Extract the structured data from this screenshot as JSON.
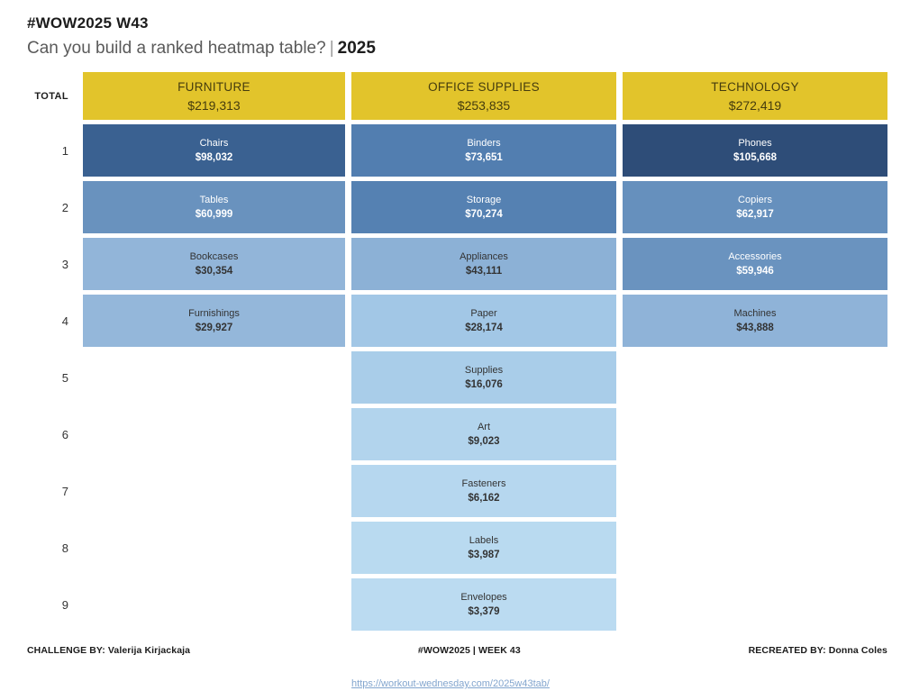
{
  "title": "#WOW2025 W43",
  "subtitle": {
    "question": "Can you build a ranked heatmap table?",
    "separator": "|",
    "year": "2025"
  },
  "colors": {
    "header_bg": "#E2C42B",
    "header_fg": "#453C0E",
    "dark_text": "#333333",
    "light_text": "#FFFFFF",
    "link": "#82A5CE"
  },
  "table": {
    "total_label": "TOTAL",
    "ranks": [
      "1",
      "2",
      "3",
      "4",
      "5",
      "6",
      "7",
      "8",
      "9"
    ],
    "columns": [
      {
        "header": {
          "name": "FURNITURE",
          "total": "$219,313"
        },
        "cells": {
          "1": {
            "label": "Chairs",
            "value": "$98,032",
            "bg": "#3A6191",
            "fg": "#FFFFFF"
          },
          "2": {
            "label": "Tables",
            "value": "$60,999",
            "bg": "#6992BE",
            "fg": "#FFFFFF"
          },
          "3": {
            "label": "Bookcases",
            "value": "$30,354",
            "bg": "#92B5D9",
            "fg": "#333333"
          },
          "4": {
            "label": "Furnishings",
            "value": "$29,927",
            "bg": "#94B7DA",
            "fg": "#333333"
          }
        }
      },
      {
        "header": {
          "name": "OFFICE SUPPLIES",
          "total": "$253,835"
        },
        "cells": {
          "1": {
            "label": "Binders",
            "value": "$73,651",
            "bg": "#527EB0",
            "fg": "#FFFFFF"
          },
          "2": {
            "label": "Storage",
            "value": "$70,274",
            "bg": "#5581B2",
            "fg": "#FFFFFF"
          },
          "3": {
            "label": "Appliances",
            "value": "$43,111",
            "bg": "#8CB1D6",
            "fg": "#333333"
          },
          "4": {
            "label": "Paper",
            "value": "$28,174",
            "bg": "#A2C7E6",
            "fg": "#333333"
          },
          "5": {
            "label": "Supplies",
            "value": "$16,076",
            "bg": "#A9CDE9",
            "fg": "#333333"
          },
          "6": {
            "label": "Art",
            "value": "$9,023",
            "bg": "#B2D4ED",
            "fg": "#333333"
          },
          "7": {
            "label": "Fasteners",
            "value": "$6,162",
            "bg": "#B6D7EF",
            "fg": "#333333"
          },
          "8": {
            "label": "Labels",
            "value": "$3,987",
            "bg": "#B9DAF0",
            "fg": "#333333"
          },
          "9": {
            "label": "Envelopes",
            "value": "$3,379",
            "bg": "#BBDBF1",
            "fg": "#333333"
          }
        }
      },
      {
        "header": {
          "name": "TECHNOLOGY",
          "total": "$272,419"
        },
        "cells": {
          "1": {
            "label": "Phones",
            "value": "$105,668",
            "bg": "#2E4D78",
            "fg": "#FFFFFF"
          },
          "2": {
            "label": "Copiers",
            "value": "$62,917",
            "bg": "#6690BD",
            "fg": "#FFFFFF"
          },
          "3": {
            "label": "Accessories",
            "value": "$59,946",
            "bg": "#6A93BF",
            "fg": "#FFFFFF"
          },
          "4": {
            "label": "Machines",
            "value": "$43,888",
            "bg": "#8FB3D8",
            "fg": "#333333"
          }
        }
      }
    ]
  },
  "footer": {
    "challenge_by": "CHALLENGE BY: Valerija Kirjackaja",
    "center": "#WOW2025  |  WEEK 43",
    "recreated_by": "RECREATED BY: Donna Coles",
    "link": "https://workout-wednesday.com/2025w43tab/"
  },
  "chart_data": {
    "type": "heatmap",
    "title": "#WOW2025 W43 — Can you build a ranked heatmap table? | 2025",
    "columns": [
      "FURNITURE",
      "OFFICE SUPPLIES",
      "TECHNOLOGY"
    ],
    "column_totals": [
      219313,
      253835,
      272419
    ],
    "rank_rows": [
      1,
      2,
      3,
      4,
      5,
      6,
      7,
      8,
      9
    ],
    "cells": [
      {
        "column": "FURNITURE",
        "rank": 1,
        "label": "Chairs",
        "value": 98032
      },
      {
        "column": "FURNITURE",
        "rank": 2,
        "label": "Tables",
        "value": 60999
      },
      {
        "column": "FURNITURE",
        "rank": 3,
        "label": "Bookcases",
        "value": 30354
      },
      {
        "column": "FURNITURE",
        "rank": 4,
        "label": "Furnishings",
        "value": 29927
      },
      {
        "column": "OFFICE SUPPLIES",
        "rank": 1,
        "label": "Binders",
        "value": 73651
      },
      {
        "column": "OFFICE SUPPLIES",
        "rank": 2,
        "label": "Storage",
        "value": 70274
      },
      {
        "column": "OFFICE SUPPLIES",
        "rank": 3,
        "label": "Appliances",
        "value": 43111
      },
      {
        "column": "OFFICE SUPPLIES",
        "rank": 4,
        "label": "Paper",
        "value": 28174
      },
      {
        "column": "OFFICE SUPPLIES",
        "rank": 5,
        "label": "Supplies",
        "value": 16076
      },
      {
        "column": "OFFICE SUPPLIES",
        "rank": 6,
        "label": "Art",
        "value": 9023
      },
      {
        "column": "OFFICE SUPPLIES",
        "rank": 7,
        "label": "Fasteners",
        "value": 6162
      },
      {
        "column": "OFFICE SUPPLIES",
        "rank": 8,
        "label": "Labels",
        "value": 3987
      },
      {
        "column": "OFFICE SUPPLIES",
        "rank": 9,
        "label": "Envelopes",
        "value": 3379
      },
      {
        "column": "TECHNOLOGY",
        "rank": 1,
        "label": "Phones",
        "value": 105668
      },
      {
        "column": "TECHNOLOGY",
        "rank": 2,
        "label": "Copiers",
        "value": 62917
      },
      {
        "column": "TECHNOLOGY",
        "rank": 3,
        "label": "Accessories",
        "value": 59946
      },
      {
        "column": "TECHNOLOGY",
        "rank": 4,
        "label": "Machines",
        "value": 43888
      }
    ],
    "color_scale": {
      "palette": "sequential-blue",
      "min": 3379,
      "max": 105668,
      "min_color": "#BBDBF1",
      "max_color": "#2E4D78"
    },
    "header_color": "#E2C42B",
    "grid": false,
    "legend": false
  }
}
